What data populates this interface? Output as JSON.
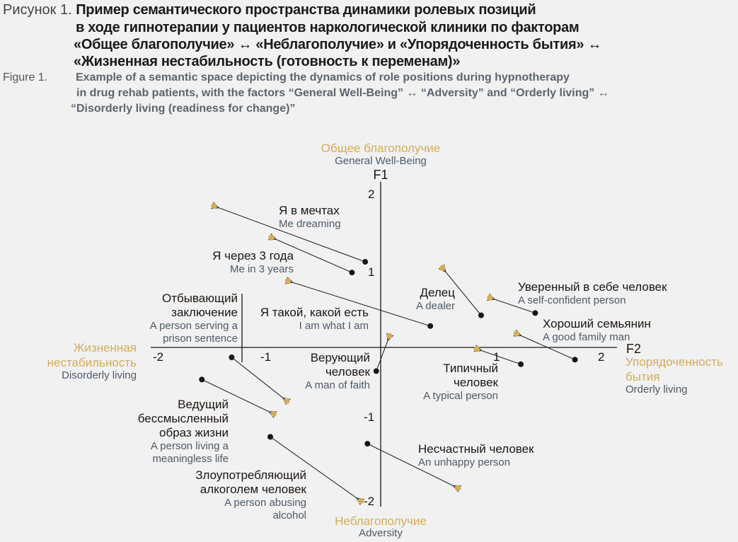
{
  "caption": {
    "ru_label": "Рисунок 1.",
    "ru_lines": [
      "Пример семантического пространства динамики ролевых позиций",
      "в ходе гипнотерапии у пациентов наркологической клиники по факторам",
      "«Общее благополучие» ↔ «Неблагополучие» и «Упорядоченность бытия» ↔",
      "«Жизненная нестабильность (готовность к переменам)»"
    ],
    "en_label": "Figure 1.",
    "en_lines": [
      "Example of a semantic space depicting the dynamics of role positions during hypnotherapy",
      "in drug rehab patients, with the factors “General Well-Being” ↔ “Adversity” and “Orderly living” ↔",
      "“Disorderly living (readiness for change)”"
    ]
  },
  "chart_data": {
    "type": "scatter",
    "subtype": "arrow-displacement",
    "xlim": [
      -2.1,
      2.1
    ],
    "ylim": [
      -2.1,
      2.2
    ],
    "grid": false,
    "x_axis": {
      "name": "F2",
      "positive_ru": "Упорядоченность бытия",
      "positive_en": "Orderly living",
      "negative_ru": "Жизненная нестабильность",
      "negative_en": "Disorderly living",
      "ticks": [
        "-2",
        "-1",
        "1",
        "2"
      ]
    },
    "y_axis": {
      "name": "F1",
      "positive_ru": "Общее благополучие",
      "positive_en": "General Well-Being",
      "negative_ru": "Неблагополучие",
      "negative_en": "Adversity",
      "ticks": [
        "2",
        "1",
        "-1",
        "-2"
      ]
    },
    "colors": {
      "start": "#1d1611",
      "end": "#d4ac5a",
      "arrow": "#2a2a2a",
      "axis_label": "#d4ac5a"
    },
    "points": [
      {
        "ru": "Я в мечтах",
        "en": "Me dreaming",
        "start": [
          -0.14,
          1.12
        ],
        "end": [
          -1.51,
          1.85
        ]
      },
      {
        "ru": "Я через 3 года",
        "en": "Me in 3 years",
        "start": [
          -0.26,
          0.98
        ],
        "end": [
          -0.99,
          1.44
        ]
      },
      {
        "ru": "Я такой, какой есть",
        "en": "I am what I am",
        "start": [
          0.45,
          0.28
        ],
        "end": [
          -0.84,
          0.87
        ]
      },
      {
        "ru": "Отбывающий заключение",
        "en": "A person serving a prison sentence",
        "start": [
          -1.35,
          -0.13
        ],
        "end": [
          -0.85,
          -0.7
        ]
      },
      {
        "ru": "Делец",
        "en": "A dealer",
        "start": [
          0.91,
          0.42
        ],
        "end": [
          0.56,
          1.04
        ]
      },
      {
        "ru": "Уверенный в себе человек",
        "en": "A self-confident person",
        "start": [
          1.4,
          0.45
        ],
        "end": [
          0.99,
          0.65
        ]
      },
      {
        "ru": "Хороший семьянин",
        "en": "A good family man",
        "start": [
          1.76,
          -0.16
        ],
        "end": [
          1.23,
          0.18
        ]
      },
      {
        "ru": "Верующий человек",
        "en": "A man of faith",
        "start": [
          -0.04,
          -0.31
        ],
        "end": [
          0.08,
          0.15
        ]
      },
      {
        "ru": "Типичный человек",
        "en": "A typical person",
        "start": [
          1.27,
          -0.22
        ],
        "end": [
          0.87,
          -0.02
        ]
      },
      {
        "ru": "Ведущий бессмысленный образ жизни",
        "en": "A person living a meaningless life",
        "start": [
          -1.62,
          -0.42
        ],
        "end": [
          -0.97,
          -0.87
        ]
      },
      {
        "ru": "Злоупотребляющий алкоголем человек",
        "en": "A person abusing alcohol",
        "start": [
          -1.0,
          -1.17
        ],
        "end": [
          -0.18,
          -2.01
        ]
      },
      {
        "ru": "Несчастный человек",
        "en": "An unhappy person",
        "start": [
          -0.12,
          -1.26
        ],
        "end": [
          0.7,
          -1.84
        ]
      }
    ]
  }
}
